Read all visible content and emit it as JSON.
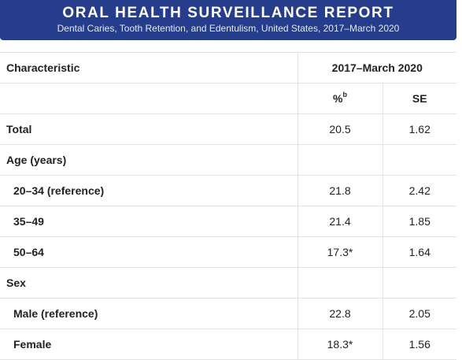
{
  "banner": {
    "title": "ORAL HEALTH SURVEILLANCE REPORT",
    "subtitle": "Dental Caries, Tooth Retention, and Edentulism, United States, 2017–March 2020"
  },
  "table": {
    "header": {
      "characteristic": "Characteristic",
      "period": "2017–March 2020",
      "percent_label": "%",
      "percent_footnote": "b",
      "se_label": "SE"
    },
    "rows": [
      {
        "label": "Total",
        "percent": "20.5",
        "se": "1.62"
      },
      {
        "label": "Age (years)",
        "percent": "",
        "se": ""
      },
      {
        "label": "20–34 (reference)",
        "percent": "21.8",
        "se": "2.42"
      },
      {
        "label": "35–49",
        "percent": "21.4",
        "se": "1.85"
      },
      {
        "label": "50–64",
        "percent": "17.3*",
        "se": "1.64"
      },
      {
        "label": "Sex",
        "percent": "",
        "se": ""
      },
      {
        "label": "Male (reference)",
        "percent": "22.8",
        "se": "2.05"
      },
      {
        "label": "Female",
        "percent": "18.3*",
        "se": "1.56"
      }
    ]
  }
}
